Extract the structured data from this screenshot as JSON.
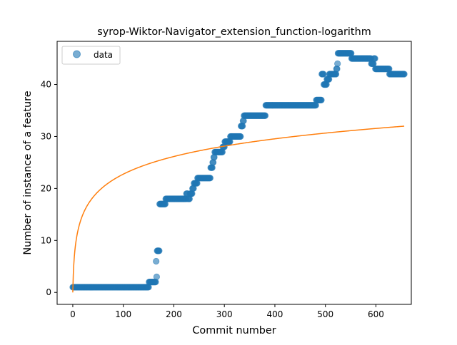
{
  "chart_data": {
    "type": "scatter",
    "title": "syrop-Wiktor-Navigator_extension_function-logarithm",
    "xlabel": "Commit number",
    "ylabel": "Number of instance of a feature",
    "xlim": [
      -31,
      670
    ],
    "ylim": [
      -2.3,
      48.3
    ],
    "xticks": [
      0,
      100,
      200,
      300,
      400,
      500,
      600
    ],
    "yticks": [
      0,
      10,
      20,
      30,
      40
    ],
    "grid": false,
    "legend": {
      "placement": "upper-left",
      "entries": [
        {
          "label": "data",
          "marker": "circle",
          "color": "#1f77b4"
        }
      ]
    },
    "series": [
      {
        "name": "data",
        "kind": "scatter",
        "color": "#1f77b4",
        "steps": [
          [
            0,
            0,
            1
          ],
          [
            1,
            150,
            1
          ],
          [
            151,
            164,
            2
          ],
          [
            165,
            165,
            6
          ],
          [
            166,
            166,
            3
          ],
          [
            167,
            171,
            8
          ],
          [
            172,
            183,
            17
          ],
          [
            184,
            224,
            18
          ],
          [
            225,
            227,
            19
          ],
          [
            228,
            231,
            18
          ],
          [
            232,
            236,
            19
          ],
          [
            237,
            239,
            20
          ],
          [
            240,
            246,
            21
          ],
          [
            247,
            272,
            22
          ],
          [
            273,
            276,
            24
          ],
          [
            277,
            278,
            25
          ],
          [
            279,
            280,
            26
          ],
          [
            281,
            296,
            27
          ],
          [
            297,
            300,
            28
          ],
          [
            301,
            311,
            29
          ],
          [
            312,
            332,
            30
          ],
          [
            333,
            336,
            32
          ],
          [
            337,
            338,
            33
          ],
          [
            339,
            381,
            34
          ],
          [
            382,
            481,
            36
          ],
          [
            482,
            492,
            37
          ],
          [
            493,
            496,
            42
          ],
          [
            497,
            502,
            40
          ],
          [
            503,
            507,
            41
          ],
          [
            508,
            521,
            42
          ],
          [
            522,
            523,
            43
          ],
          [
            524,
            524,
            44
          ],
          [
            525,
            551,
            46
          ],
          [
            552,
            590,
            45
          ],
          [
            591,
            595,
            44
          ],
          [
            596,
            598,
            45
          ],
          [
            599,
            626,
            43
          ],
          [
            627,
            656,
            42
          ]
        ]
      },
      {
        "name": "",
        "kind": "line",
        "color": "#ff7f0e",
        "model": "a*ln(x+1)",
        "coefficient": 4.93,
        "x_range": [
          0,
          656
        ]
      }
    ]
  }
}
